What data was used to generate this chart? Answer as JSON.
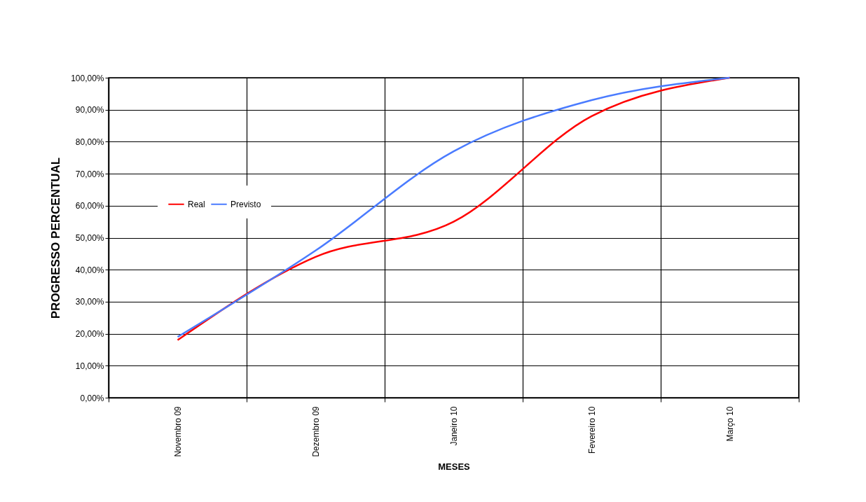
{
  "chart_data": {
    "type": "line",
    "xlabel": "MESES",
    "ylabel": "PROGRESSO PERCENTUAL",
    "categories": [
      "Novembro 09",
      "Dezembro 09",
      "Janeiro 10",
      "Fevereiro 10",
      "Março 10"
    ],
    "series": [
      {
        "name": "Real",
        "color": "#ff0000",
        "values": [
          18,
          44,
          55,
          88,
          100
        ]
      },
      {
        "name": "Previsto",
        "color": "#4a7bff",
        "values": [
          19,
          46,
          77,
          93,
          100
        ]
      }
    ],
    "ylim": [
      0,
      100
    ],
    "yticks": [
      {
        "value": 0,
        "label": "0,00%"
      },
      {
        "value": 10,
        "label": "10,00%"
      },
      {
        "value": 20,
        "label": "20,00%"
      },
      {
        "value": 30,
        "label": "30,00%"
      },
      {
        "value": 40,
        "label": "40,00%"
      },
      {
        "value": 50,
        "label": "50,00%"
      },
      {
        "value": 60,
        "label": "60,00%"
      },
      {
        "value": 70,
        "label": "70,00%"
      },
      {
        "value": 80,
        "label": "80,00%"
      },
      {
        "value": 90,
        "label": "90,00%"
      },
      {
        "value": 100,
        "label": "100,00%"
      }
    ],
    "grid": true,
    "legend": "left",
    "marker": "none",
    "line_style": "solid"
  }
}
